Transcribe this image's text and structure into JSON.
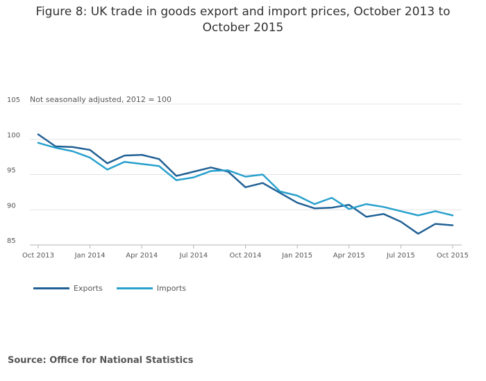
{
  "chart_data": {
    "type": "line",
    "title": "Figure 8: UK trade in goods export and import prices, October 2013 to October 2015",
    "subtitle": "Not seasonally adjusted, 2012 = 100",
    "ylim": [
      85,
      105
    ],
    "yticks": [
      85,
      90,
      95,
      100,
      105
    ],
    "grid": true,
    "x_count": 25,
    "xticks": [
      {
        "index": 0,
        "label": "Oct 2013"
      },
      {
        "index": 3,
        "label": "Jan 2014"
      },
      {
        "index": 6,
        "label": "Apr 2014"
      },
      {
        "index": 9,
        "label": "Jul 2014"
      },
      {
        "index": 12,
        "label": "Oct 2014"
      },
      {
        "index": 15,
        "label": "Jan 2015"
      },
      {
        "index": 18,
        "label": "Apr 2015"
      },
      {
        "index": 21,
        "label": "Jul 2015"
      },
      {
        "index": 24,
        "label": "Oct 2015"
      }
    ],
    "series": [
      {
        "name": "Exports",
        "color": "#206095",
        "values": [
          100.7,
          99.0,
          98.9,
          98.5,
          96.6,
          97.7,
          97.8,
          97.2,
          94.8,
          95.4,
          96.0,
          95.4,
          93.2,
          93.8,
          92.4,
          91.0,
          90.2,
          90.3,
          90.7,
          89.0,
          89.4,
          88.3,
          86.6,
          88.0,
          87.8
        ]
      },
      {
        "name": "Imports",
        "color": "#27a0cc",
        "values": [
          99.5,
          98.8,
          98.3,
          97.4,
          95.7,
          96.8,
          96.5,
          96.2,
          94.2,
          94.6,
          95.5,
          95.6,
          94.7,
          95.0,
          92.6,
          92.0,
          90.8,
          91.7,
          90.1,
          90.8,
          90.4,
          89.8,
          89.2,
          89.8,
          89.2
        ]
      }
    ]
  },
  "source": "Source: Office for National Statistics"
}
